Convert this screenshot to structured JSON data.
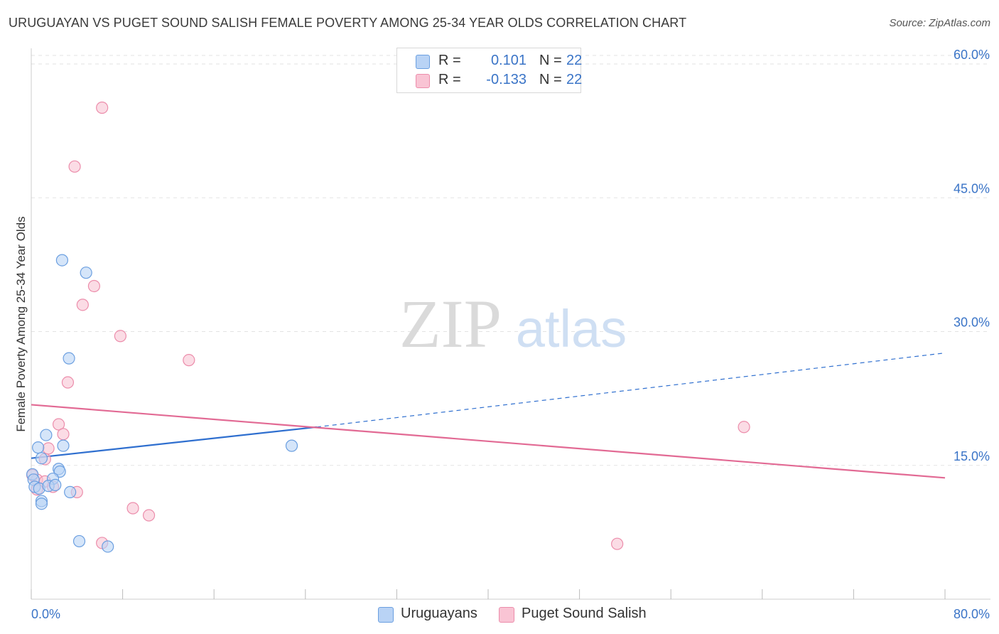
{
  "title": "URUGUAYAN VS PUGET SOUND SALISH FEMALE POVERTY AMONG 25-34 YEAR OLDS CORRELATION CHART",
  "source": "Source: ZipAtlas.com",
  "watermark": {
    "zip": "ZIP",
    "atlas": "atlas"
  },
  "colors": {
    "blue_fill": "#b9d3f5",
    "blue_stroke": "#6b9fe0",
    "blue_line": "#2f6fcf",
    "pink_fill": "#f9c4d4",
    "pink_stroke": "#ec8dab",
    "pink_line": "#e26a94",
    "axis_label": "#3a74c7",
    "grid": "#e3e3e3"
  },
  "legend": {
    "rows": [
      {
        "r_label": "R =",
        "r_value": "0.101",
        "n_label": "N =",
        "n_value": "22"
      },
      {
        "r_label": "R =",
        "r_value": "-0.133",
        "n_label": "N =",
        "n_value": "22"
      }
    ]
  },
  "bottom_legend": [
    "Uruguayans",
    "Puget Sound Salish"
  ],
  "chart_data": {
    "type": "scatter",
    "title": "URUGUAYAN VS PUGET SOUND SALISH FEMALE POVERTY AMONG 25-34 YEAR OLDS CORRELATION CHART",
    "xlabel": "",
    "ylabel": "Female Poverty Among 25-34 Year Olds",
    "xlim": [
      0,
      80
    ],
    "ylim": [
      0,
      60
    ],
    "x_tick_labels": [
      "0.0%",
      "80.0%"
    ],
    "y_tick_labels": [
      "15.0%",
      "30.0%",
      "45.0%",
      "60.0%"
    ],
    "y_ticks": [
      15,
      30,
      45,
      60
    ],
    "grid": true,
    "legend_position": "top-center",
    "series": [
      {
        "name": "Uruguayans",
        "r": 0.101,
        "n": 22,
        "points": [
          [
            2.7,
            38.0
          ],
          [
            4.8,
            36.6
          ],
          [
            3.3,
            27.0
          ],
          [
            1.3,
            18.4
          ],
          [
            0.6,
            17.0
          ],
          [
            2.8,
            17.2
          ],
          [
            0.9,
            15.8
          ],
          [
            0.1,
            14.0
          ],
          [
            2.4,
            14.6
          ],
          [
            2.5,
            14.3
          ],
          [
            0.2,
            13.4
          ],
          [
            1.9,
            13.5
          ],
          [
            0.3,
            12.6
          ],
          [
            0.7,
            12.4
          ],
          [
            1.5,
            12.7
          ],
          [
            2.1,
            12.8
          ],
          [
            3.4,
            12.0
          ],
          [
            0.9,
            11.0
          ],
          [
            0.9,
            10.7
          ],
          [
            4.2,
            6.5
          ],
          [
            6.7,
            5.9
          ],
          [
            22.8,
            17.2
          ]
        ],
        "trend": {
          "x0": 0,
          "y0": 15.8,
          "x1": 25,
          "y1": 19.3,
          "dashed_to_x": 80,
          "dashed_to_y": 27.6
        }
      },
      {
        "name": "Puget Sound Salish",
        "r": -0.133,
        "n": 22,
        "points": [
          [
            6.2,
            55.1
          ],
          [
            3.8,
            48.5
          ],
          [
            5.5,
            35.1
          ],
          [
            4.5,
            33.0
          ],
          [
            7.8,
            29.5
          ],
          [
            13.8,
            26.8
          ],
          [
            3.2,
            24.3
          ],
          [
            2.4,
            19.6
          ],
          [
            2.8,
            18.5
          ],
          [
            1.5,
            16.9
          ],
          [
            1.2,
            15.7
          ],
          [
            0.1,
            13.9
          ],
          [
            0.5,
            13.4
          ],
          [
            1.2,
            13.2
          ],
          [
            1.9,
            12.6
          ],
          [
            0.5,
            12.3
          ],
          [
            4.0,
            12.0
          ],
          [
            8.9,
            10.2
          ],
          [
            10.3,
            9.4
          ],
          [
            6.2,
            6.3
          ],
          [
            51.3,
            6.2
          ],
          [
            62.4,
            19.3
          ]
        ],
        "trend": {
          "x0": 0,
          "y0": 21.8,
          "x1": 80,
          "y1": 13.6
        }
      }
    ]
  }
}
